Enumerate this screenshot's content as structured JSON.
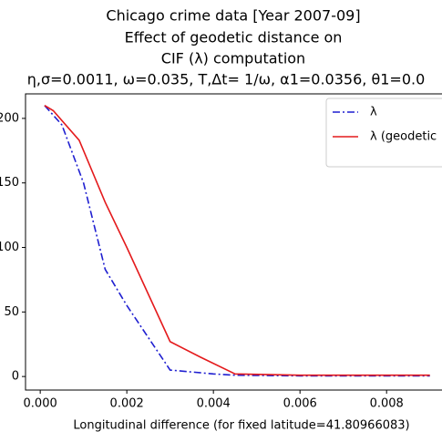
{
  "chart_data": {
    "type": "line",
    "title": [
      "Chicago crime data [Year 2007-09]",
      "Effect of geodetic distance on",
      "CIF (λ) computation",
      "η,σ=0.0011, ω=0.035, T,Δt= 1/ω, α1=0.0356, θ1=0.0"
    ],
    "x_label": "Longitudinal difference (for fixed latitude=41.80966083)",
    "xlim": [
      -0.00034,
      0.00928
    ],
    "ylim": [
      -10.5,
      219
    ],
    "xticks": [
      {
        "value": 0,
        "label": "0.000"
      },
      {
        "value": 0.002,
        "label": "0.002"
      },
      {
        "value": 0.004,
        "label": "0.004"
      },
      {
        "value": 0.006,
        "label": "0.006"
      },
      {
        "value": 0.008,
        "label": "0.008"
      }
    ],
    "yticks": [
      0,
      50,
      100,
      150,
      200
    ],
    "legend": "upper right",
    "series": [
      {
        "name": "λ",
        "color": "#1f1fd0",
        "dash": "dashdot",
        "x": [
          0.0001,
          0.0005,
          0.001,
          0.0015,
          0.002,
          0.003,
          0.004,
          0.0045,
          0.006,
          0.009
        ],
        "values": [
          210,
          195,
          150,
          83,
          55,
          5,
          2,
          1,
          0.5,
          0.5
        ]
      },
      {
        "name": "λ (geodetic",
        "color": "#e41a1c",
        "dash": "solid",
        "x": [
          0.0001,
          0.0003,
          0.0009,
          0.0015,
          0.002,
          0.003,
          0.0037,
          0.0045,
          0.006,
          0.009
        ],
        "values": [
          210,
          206,
          183,
          135,
          100,
          27,
          15,
          2,
          1,
          1
        ]
      }
    ]
  }
}
